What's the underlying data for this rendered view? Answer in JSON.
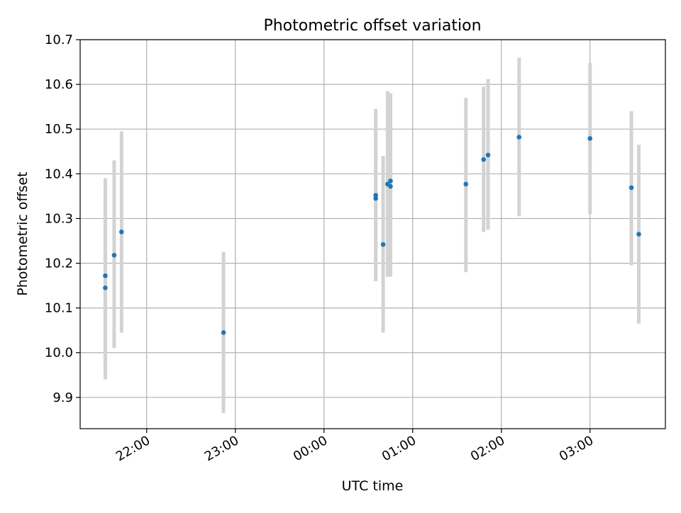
{
  "chart_data": {
    "type": "scatter",
    "title": "Photometric offset variation",
    "xlabel": "UTC time",
    "ylabel": "Photometric offset",
    "xlim": [
      "21:15",
      "03:51"
    ],
    "ylim": [
      9.83,
      10.7
    ],
    "grid": true,
    "legend": "none",
    "x_ticks": [
      "22:00",
      "23:00",
      "00:00",
      "01:00",
      "02:00",
      "03:00"
    ],
    "y_ticks": [
      "9.9",
      "10.0",
      "10.1",
      "10.2",
      "10.3",
      "10.4",
      "10.5",
      "10.6",
      "10.7"
    ],
    "colors": {
      "points": "#1f77b4",
      "errorbars": "#d3d3d3",
      "grid": "#b0b0b0"
    },
    "series": [
      {
        "points": [
          {
            "x": "21:32",
            "y": 10.145,
            "err_low": 9.94,
            "err_high": 10.35
          },
          {
            "x": "21:32",
            "y": 10.172,
            "err_low": 9.96,
            "err_high": 10.39
          },
          {
            "x": "21:38",
            "y": 10.218,
            "err_low": 10.01,
            "err_high": 10.43
          },
          {
            "x": "21:43",
            "y": 10.27,
            "err_low": 10.045,
            "err_high": 10.495
          },
          {
            "x": "22:52",
            "y": 10.045,
            "err_low": 9.865,
            "err_high": 10.225
          },
          {
            "x": "00:35",
            "y": 10.345,
            "err_low": 10.16,
            "err_high": 10.53
          },
          {
            "x": "00:35",
            "y": 10.352,
            "err_low": 10.16,
            "err_high": 10.545
          },
          {
            "x": "00:40",
            "y": 10.242,
            "err_low": 10.045,
            "err_high": 10.44
          },
          {
            "x": "00:43",
            "y": 10.377,
            "err_low": 10.17,
            "err_high": 10.585
          },
          {
            "x": "00:45",
            "y": 10.372,
            "err_low": 10.17,
            "err_high": 10.575
          },
          {
            "x": "00:45",
            "y": 10.384,
            "err_low": 10.18,
            "err_high": 10.58
          },
          {
            "x": "01:36",
            "y": 10.377,
            "err_low": 10.18,
            "err_high": 10.57
          },
          {
            "x": "01:48",
            "y": 10.432,
            "err_low": 10.27,
            "err_high": 10.595
          },
          {
            "x": "01:51",
            "y": 10.442,
            "err_low": 10.275,
            "err_high": 10.612
          },
          {
            "x": "02:12",
            "y": 10.482,
            "err_low": 10.305,
            "err_high": 10.66
          },
          {
            "x": "03:00",
            "y": 10.479,
            "err_low": 10.31,
            "err_high": 10.648
          },
          {
            "x": "03:28",
            "y": 10.369,
            "err_low": 10.195,
            "err_high": 10.54
          },
          {
            "x": "03:33",
            "y": 10.265,
            "err_low": 10.065,
            "err_high": 10.465
          }
        ]
      }
    ]
  }
}
